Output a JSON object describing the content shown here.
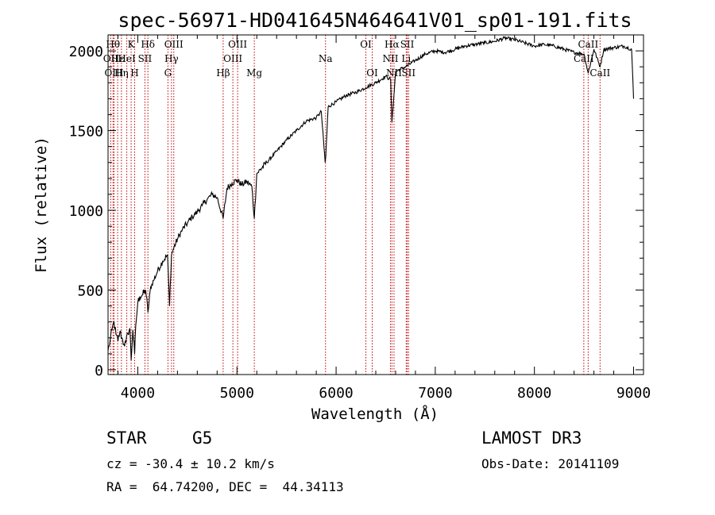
{
  "chart_data": {
    "type": "line",
    "title": "spec-56971-HD041645N464641V01_sp01-191.fits",
    "xlabel": "Wavelength (Å)",
    "ylabel": "Flux (relative)",
    "xlim": [
      3700,
      9100
    ],
    "ylim": [
      -30,
      2100
    ],
    "xticks": [
      4000,
      5000,
      6000,
      7000,
      8000,
      9000
    ],
    "yticks": [
      0,
      500,
      1000,
      1500,
      2000
    ],
    "grid": false,
    "series": [
      {
        "name": "spectrum",
        "x": [
          3700,
          3720,
          3740,
          3760,
          3780,
          3800,
          3820,
          3840,
          3860,
          3880,
          3900,
          3920,
          3933,
          3950,
          3968,
          3980,
          4000,
          4020,
          4050,
          4080,
          4102,
          4130,
          4160,
          4200,
          4250,
          4300,
          4320,
          4340,
          4360,
          4400,
          4450,
          4500,
          4550,
          4600,
          4650,
          4700,
          4750,
          4800,
          4861,
          4900,
          4950,
          5000,
          5050,
          5100,
          5150,
          5175,
          5200,
          5300,
          5400,
          5500,
          5600,
          5700,
          5800,
          5850,
          5890,
          5896,
          5920,
          6000,
          6100,
          6200,
          6300,
          6400,
          6500,
          6550,
          6563,
          6580,
          6600,
          6700,
          6800,
          6900,
          7000,
          7100,
          7200,
          7300,
          7400,
          7500,
          7600,
          7700,
          7800,
          7900,
          8000,
          8100,
          8200,
          8300,
          8400,
          8500,
          8542,
          8600,
          8662,
          8700,
          8800,
          8900,
          8980,
          9000
        ],
        "values": [
          120,
          180,
          250,
          300,
          220,
          180,
          240,
          200,
          160,
          170,
          230,
          260,
          60,
          250,
          100,
          280,
          420,
          460,
          470,
          500,
          360,
          520,
          560,
          620,
          680,
          720,
          400,
          720,
          760,
          820,
          880,
          920,
          960,
          990,
          1030,
          1070,
          1100,
          1080,
          950,
          1140,
          1170,
          1190,
          1160,
          1180,
          1150,
          950,
          1230,
          1300,
          1370,
          1440,
          1500,
          1560,
          1580,
          1620,
          1300,
          1340,
          1650,
          1680,
          1720,
          1740,
          1770,
          1800,
          1840,
          1820,
          1550,
          1700,
          1870,
          1900,
          1940,
          1980,
          2000,
          1990,
          2010,
          2030,
          2040,
          2050,
          2060,
          2080,
          2070,
          2050,
          2030,
          2040,
          2030,
          2010,
          1990,
          1980,
          1860,
          2010,
          1900,
          2010,
          2020,
          2030,
          2010,
          1700
        ]
      }
    ],
    "spectral_lines": [
      {
        "x": 3727,
        "label": "OII",
        "row": 1
      },
      {
        "x": 3750,
        "label": "Hθ",
        "row": 0
      },
      {
        "x": 3760,
        "label": "OIII",
        "row": 2
      },
      {
        "x": 3797,
        "label": "Hε",
        "row": 1
      },
      {
        "x": 3835,
        "label": "Hη",
        "row": 2
      },
      {
        "x": 3889,
        "label": "HeI",
        "row": 1
      },
      {
        "x": 3933,
        "label": "K",
        "row": 0
      },
      {
        "x": 3968,
        "label": "H",
        "row": 2
      },
      {
        "x": 4072,
        "label": "SII",
        "row": 1
      },
      {
        "x": 4102,
        "label": "Hδ",
        "row": 0
      },
      {
        "x": 4304,
        "label": "G",
        "row": 2
      },
      {
        "x": 4340,
        "label": "Hγ",
        "row": 1
      },
      {
        "x": 4363,
        "label": "OIII",
        "row": 0
      },
      {
        "x": 4861,
        "label": "Hβ",
        "row": 2
      },
      {
        "x": 4959,
        "label": "OIII",
        "row": 1
      },
      {
        "x": 5007,
        "label": "OIII",
        "row": 0
      },
      {
        "x": 5175,
        "label": "Mg",
        "row": 2
      },
      {
        "x": 5893,
        "label": "Na",
        "row": 1
      },
      {
        "x": 6300,
        "label": "OI",
        "row": 0
      },
      {
        "x": 6364,
        "label": "OI",
        "row": 2
      },
      {
        "x": 6548,
        "label": "NII",
        "row": 1
      },
      {
        "x": 6563,
        "label": "Hα",
        "row": 0
      },
      {
        "x": 6584,
        "label": "NII",
        "row": 2
      },
      {
        "x": 6707,
        "label": "Li",
        "row": 1
      },
      {
        "x": 6717,
        "label": "SII",
        "row": 0
      },
      {
        "x": 6731,
        "label": "SII",
        "row": 2
      },
      {
        "x": 8498,
        "label": "CaII",
        "row": 1
      },
      {
        "x": 8542,
        "label": "CaII",
        "row": 0
      },
      {
        "x": 8662,
        "label": "CaII",
        "row": 2
      }
    ]
  },
  "info": {
    "object_class": "STAR",
    "subclass": "G5",
    "survey": "LAMOST DR3",
    "redshift": "cz = -30.4 ± 10.2 km/s",
    "obs_date": "Obs-Date: 20141109",
    "coords": "RA =  64.74200, DEC =  44.34113"
  },
  "colors": {
    "line_marker": "#c00000",
    "spectrum": "#000000",
    "background": "#ffffff"
  }
}
